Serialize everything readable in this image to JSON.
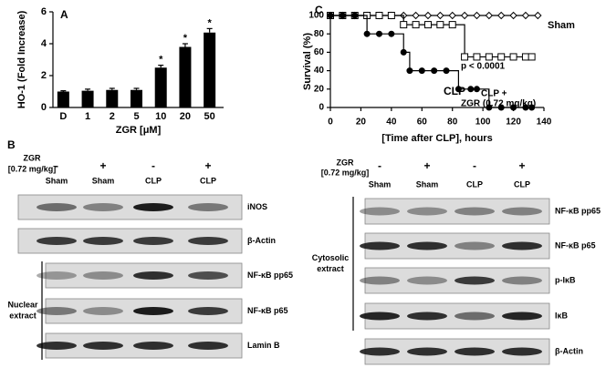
{
  "chart_data": [
    {
      "type": "bar",
      "panel_label": "A",
      "xlabel": "ZGR [μM]",
      "ylabel": "HO-1 (Fold Increase)",
      "categories": [
        "D",
        "1",
        "2",
        "5",
        "10",
        "20",
        "50"
      ],
      "values": [
        1,
        1.05,
        1.1,
        1.1,
        2.5,
        3.8,
        4.7
      ],
      "errors": [
        0.05,
        0.1,
        0.1,
        0.1,
        0.15,
        0.2,
        0.25
      ],
      "significance": [
        null,
        null,
        null,
        null,
        "*",
        "*",
        "*"
      ],
      "color": "#000000",
      "ylim": [
        0,
        6
      ],
      "yticks": [
        0,
        2,
        4,
        6
      ]
    },
    {
      "type": "line",
      "step": true,
      "panel_label": "C",
      "xlabel": "[Time after CLP], hours",
      "ylabel": "Survival (%)",
      "xlim": [
        0,
        140
      ],
      "xticks": [
        0,
        20,
        40,
        60,
        80,
        100,
        120,
        140
      ],
      "ylim": [
        0,
        100
      ],
      "yticks": [
        0,
        20,
        40,
        60,
        80,
        100
      ],
      "series": [
        {
          "name": "Sham",
          "color": "#000000",
          "marker": "diamond-open",
          "x": [
            0,
            8,
            16,
            24,
            32,
            40,
            48,
            56,
            64,
            72,
            80,
            88,
            96,
            104,
            112,
            120,
            128,
            136
          ],
          "values": [
            100,
            100,
            100,
            100,
            100,
            100,
            100,
            100,
            100,
            100,
            100,
            100,
            100,
            100,
            100,
            100,
            100,
            100
          ]
        },
        {
          "color": "#000000",
          "marker": "square-open",
          "x": [
            0,
            8,
            16,
            24,
            32,
            40,
            48,
            56,
            64,
            72,
            80,
            88,
            96,
            104,
            112,
            120,
            128,
            132
          ],
          "values": [
            100,
            100,
            100,
            100,
            100,
            100,
            90,
            90,
            90,
            90,
            90,
            55,
            55,
            55,
            55,
            55,
            55,
            55
          ]
        },
        {
          "name": "CLP",
          "color": "#000000",
          "marker": "circle-filled",
          "x": [
            0,
            8,
            16,
            24,
            32,
            40,
            48,
            52,
            60,
            68,
            76,
            84,
            92,
            96,
            104,
            112,
            120,
            128,
            132
          ],
          "values": [
            100,
            100,
            100,
            80,
            80,
            80,
            60,
            40,
            40,
            40,
            40,
            20,
            20,
            20,
            0,
            0,
            0,
            0,
            0
          ]
        }
      ],
      "annotations": [
        "p < 0.0001",
        "CLP +",
        "ZGR (0.72 mg/kg)"
      ]
    }
  ],
  "panel_b": {
    "label": "B",
    "blots": [
      {
        "treatment_label": [
          "ZGR",
          "[0.72 mg/kg]"
        ],
        "signs": [
          "-",
          "+",
          "-",
          "+"
        ],
        "groups": [
          "Sham",
          "Sham",
          "CLP",
          "CLP"
        ],
        "rows": [
          "iNOS",
          "β-Actin",
          "NF-κB pp65",
          "NF-κB p65",
          "Lamin B"
        ],
        "bracket": [
          "Nuclear",
          "extract"
        ]
      },
      {
        "treatment_label": [
          "ZGR",
          "[0.72 mg/kg]"
        ],
        "signs": [
          "-",
          "+",
          "-",
          "+"
        ],
        "groups": [
          "Sham",
          "Sham",
          "CLP",
          "CLP"
        ],
        "rows": [
          "NF-κB pp65",
          "NF-κB p65",
          "p-IκB",
          "IκB",
          "β-Actin"
        ],
        "bracket": [
          "Cytosolic",
          "extract"
        ]
      }
    ]
  }
}
